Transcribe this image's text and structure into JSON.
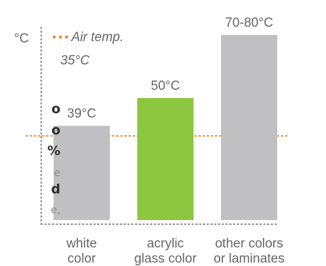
{
  "unit_label": "°C",
  "cropped_side_text": [
    "o",
    "o",
    "%",
    "e",
    "d",
    "e,"
  ],
  "chart_data": {
    "type": "bar",
    "categories": [
      [
        "white",
        "color"
      ],
      [
        "acrylic",
        "glass color"
      ],
      [
        "other colors",
        "or laminates"
      ]
    ],
    "values": [
      39,
      50,
      75
    ],
    "value_labels": [
      "39°C",
      "50°C",
      "70-80°C"
    ],
    "bar_colors": [
      "#c0c0c2",
      "#8dc63f",
      "#c0c0c2"
    ],
    "reference_line": {
      "value": 35,
      "label": [
        "Air temp.",
        "35°C"
      ],
      "color": "#f08c2a"
    },
    "ylim": [
      0,
      78
    ],
    "grid": false,
    "axis_color": "#8a8a8a",
    "label_color": "#666666"
  }
}
